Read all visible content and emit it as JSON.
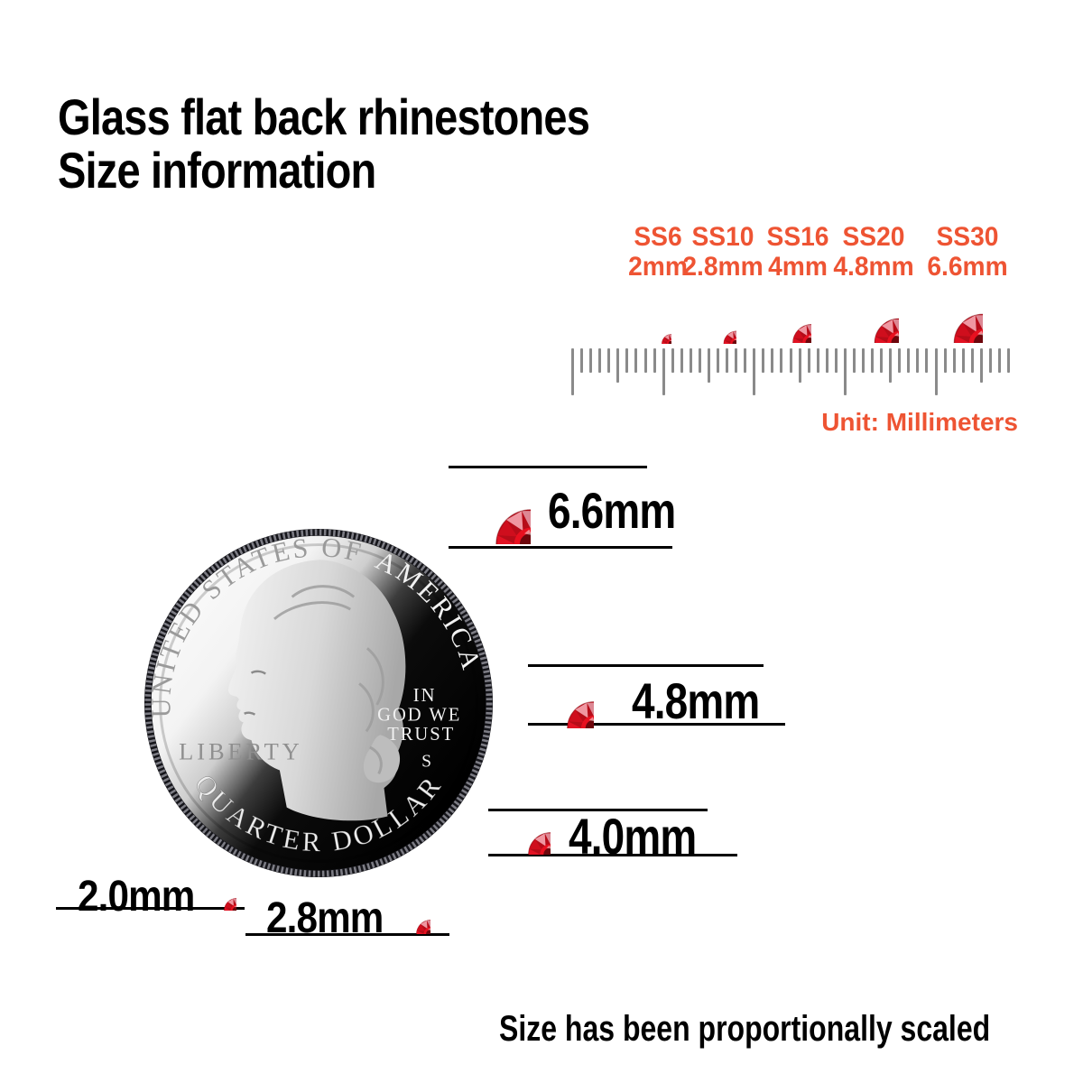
{
  "colors": {
    "accent_orange": "#ee5433",
    "stone_red": "#e8101f",
    "stone_center_dark": "#6e060c",
    "ruler_gray": "#8a8a8a",
    "text_black": "#000000"
  },
  "title": {
    "line1": "Glass flat back rhinestones",
    "line2": "Size information"
  },
  "size_chart": {
    "columns": [
      {
        "name": "SS6",
        "size": "2mm"
      },
      {
        "name": "SS10",
        "size": "2.8mm"
      },
      {
        "name": "SS16",
        "size": "4mm"
      },
      {
        "name": "SS20",
        "size": "4.8mm"
      },
      {
        "name": "SS30",
        "size": "6.6mm"
      }
    ],
    "unit_label": "Unit: Millimeters",
    "ruler": {
      "tick_count": 49,
      "medium_every": 5,
      "major_every": 10
    }
  },
  "coin": {
    "legend_top_left": "UNITED STATES OF",
    "legend_top_right": "AMERICA",
    "liberty": "LIBERTY",
    "motto_line1": "IN",
    "motto_line2": "GOD WE",
    "motto_line3": "TRUST",
    "mint_mark": "S",
    "denomination": "QUARTER DOLLAR"
  },
  "comparison": {
    "rows": [
      {
        "label": "6.6mm"
      },
      {
        "label": "4.8mm"
      },
      {
        "label": "4.0mm"
      },
      {
        "label": "2.0mm"
      },
      {
        "label": "2.8mm"
      }
    ]
  },
  "footer": {
    "note": "Size has been proportionally scaled"
  }
}
